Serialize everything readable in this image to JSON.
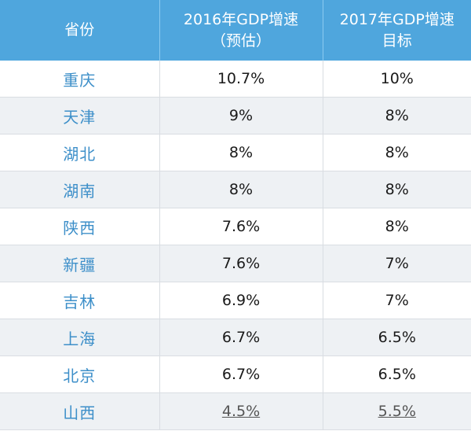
{
  "table": {
    "headers": {
      "col1": "省份",
      "col2_line1": "2016年GDP增速",
      "col2_line2": "（预估）",
      "col3_line1": "2017年GDP增速",
      "col3_line2": "目标"
    },
    "rows": [
      {
        "province": "重庆",
        "gdp2016": "10.7%",
        "gdp2017": "10%"
      },
      {
        "province": "天津",
        "gdp2016": "9%",
        "gdp2017": "8%"
      },
      {
        "province": "湖北",
        "gdp2016": "8%",
        "gdp2017": "8%"
      },
      {
        "province": "湖南",
        "gdp2016": "8%",
        "gdp2017": "8%"
      },
      {
        "province": "陕西",
        "gdp2016": "7.6%",
        "gdp2017": "8%"
      },
      {
        "province": "新疆",
        "gdp2016": "7.6%",
        "gdp2017": "7%"
      },
      {
        "province": "吉林",
        "gdp2016": "6.9%",
        "gdp2017": "7%"
      },
      {
        "province": "上海",
        "gdp2016": "6.7%",
        "gdp2017": "6.5%"
      },
      {
        "province": "北京",
        "gdp2016": "6.7%",
        "gdp2017": "6.5%"
      },
      {
        "province": "山西",
        "gdp2016": "4.5%",
        "gdp2017": "5.5%"
      }
    ]
  }
}
